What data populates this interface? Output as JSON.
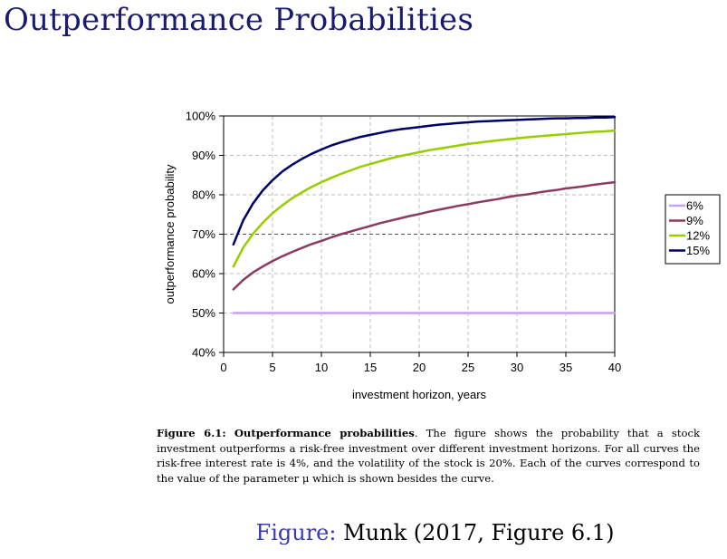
{
  "slide": {
    "title": "Outperformance Probabilities"
  },
  "caption": {
    "label": "Figure 6.1:",
    "bold_title": "Outperformance probabilities",
    "text": ". The figure shows the probability that a stock investment outperforms a risk-free investment over different investment horizons. For all curves the risk-free interest rate is 4%, and the volatility of the stock is 20%. Each of the curves correspond to the value of the parameter μ which is shown besides the curve."
  },
  "citation": {
    "label": "Figure:",
    "text": " Munk (2017, Figure 6.1)"
  },
  "chart_data": {
    "type": "line",
    "title": "",
    "xlabel": "investment horizon, years",
    "ylabel": "outperformance probability",
    "xlim": [
      0,
      40
    ],
    "ylim": [
      40,
      100
    ],
    "x_ticks": [
      0,
      5,
      10,
      15,
      20,
      25,
      30,
      35,
      40
    ],
    "y_ticks": [
      40,
      50,
      60,
      70,
      80,
      90,
      100
    ],
    "y_tick_labels": [
      "40%",
      "50%",
      "60%",
      "70%",
      "80%",
      "90%",
      "100%"
    ],
    "grid": "dashed",
    "legend_position": "right",
    "x": [
      1,
      2,
      3,
      4,
      5,
      6,
      7,
      8,
      9,
      10,
      11,
      12,
      13,
      14,
      15,
      16,
      17,
      18,
      19,
      20,
      21,
      22,
      23,
      24,
      25,
      26,
      27,
      28,
      29,
      30,
      31,
      32,
      33,
      34,
      35,
      36,
      37,
      38,
      39,
      40
    ],
    "series": [
      {
        "name": "6%",
        "color": "#c9a0f0",
        "values": [
          50.0,
          50.0,
          50.0,
          50.0,
          50.0,
          50.0,
          50.0,
          50.0,
          50.0,
          50.0,
          50.0,
          50.0,
          50.0,
          50.0,
          50.0,
          50.0,
          50.0,
          50.0,
          50.0,
          50.0,
          50.0,
          50.0,
          50.0,
          50.0,
          50.0,
          50.0,
          50.0,
          50.0,
          50.0,
          50.0,
          50.0,
          50.0,
          50.0,
          50.0,
          50.0,
          50.0,
          50.0,
          50.0,
          50.0,
          50.0
        ]
      },
      {
        "name": "9%",
        "color": "#8b3a62",
        "values": [
          56.0,
          58.4,
          60.3,
          61.8,
          63.2,
          64.4,
          65.5,
          66.5,
          67.5,
          68.3,
          69.2,
          70.0,
          70.7,
          71.4,
          72.1,
          72.8,
          73.4,
          74.0,
          74.6,
          75.1,
          75.7,
          76.2,
          76.7,
          77.2,
          77.6,
          78.1,
          78.5,
          78.9,
          79.4,
          79.8,
          80.1,
          80.5,
          80.9,
          81.2,
          81.6,
          81.9,
          82.2,
          82.6,
          82.9,
          83.2
        ]
      },
      {
        "name": "12%",
        "color": "#99cc00",
        "values": [
          61.8,
          66.6,
          70.1,
          72.9,
          75.3,
          77.3,
          79.1,
          80.6,
          82.0,
          83.2,
          84.3,
          85.3,
          86.2,
          87.1,
          87.8,
          88.5,
          89.2,
          89.8,
          90.3,
          90.8,
          91.3,
          91.7,
          92.1,
          92.5,
          92.9,
          93.2,
          93.5,
          93.8,
          94.1,
          94.3,
          94.6,
          94.8,
          95.0,
          95.2,
          95.4,
          95.6,
          95.8,
          96.0,
          96.1,
          96.3
        ]
      },
      {
        "name": "15%",
        "color": "#000066",
        "values": [
          67.4,
          73.5,
          77.8,
          81.1,
          83.7,
          85.9,
          87.6,
          89.1,
          90.4,
          91.5,
          92.5,
          93.3,
          94.0,
          94.7,
          95.2,
          95.7,
          96.2,
          96.6,
          96.9,
          97.2,
          97.5,
          97.8,
          98.0,
          98.2,
          98.4,
          98.6,
          98.7,
          98.8,
          98.9,
          99.0,
          99.1,
          99.2,
          99.3,
          99.4,
          99.4,
          99.5,
          99.5,
          99.6,
          99.6,
          99.7
        ]
      }
    ]
  }
}
